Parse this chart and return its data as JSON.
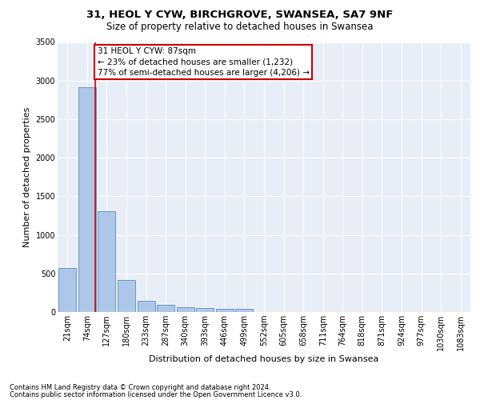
{
  "title1": "31, HEOL Y CYW, BIRCHGROVE, SWANSEA, SA7 9NF",
  "title2": "Size of property relative to detached houses in Swansea",
  "xlabel": "Distribution of detached houses by size in Swansea",
  "ylabel": "Number of detached properties",
  "footnote1": "Contains HM Land Registry data © Crown copyright and database right 2024.",
  "footnote2": "Contains public sector information licensed under the Open Government Licence v3.0.",
  "bar_labels": [
    "21sqm",
    "74sqm",
    "127sqm",
    "180sqm",
    "233sqm",
    "287sqm",
    "340sqm",
    "393sqm",
    "446sqm",
    "499sqm",
    "552sqm",
    "605sqm",
    "658sqm",
    "711sqm",
    "764sqm",
    "818sqm",
    "871sqm",
    "924sqm",
    "977sqm",
    "1030sqm",
    "1083sqm"
  ],
  "bar_values": [
    570,
    2910,
    1310,
    415,
    150,
    90,
    65,
    55,
    45,
    40,
    0,
    0,
    0,
    0,
    0,
    0,
    0,
    0,
    0,
    0,
    0
  ],
  "bar_color": "#aec6e8",
  "bar_edge_color": "#5a8fc0",
  "red_line_x": 1.42,
  "annotation_title": "31 HEOL Y CYW: 87sqm",
  "annotation_line1": "← 23% of detached houses are smaller (1,232)",
  "annotation_line2": "77% of semi-detached houses are larger (4,206) →",
  "annotation_box_color": "#ffffff",
  "annotation_border_color": "#cc0000",
  "ylim": [
    0,
    3500
  ],
  "yticks": [
    0,
    500,
    1000,
    1500,
    2000,
    2500,
    3000,
    3500
  ],
  "background_color": "#e8eef8",
  "grid_color": "#ffffff",
  "red_line_color": "#cc0000",
  "title1_fontsize": 9.5,
  "title2_fontsize": 8.5,
  "xlabel_fontsize": 8,
  "ylabel_fontsize": 8,
  "tick_fontsize": 7,
  "annot_fontsize": 7.5,
  "footnote_fontsize": 6
}
